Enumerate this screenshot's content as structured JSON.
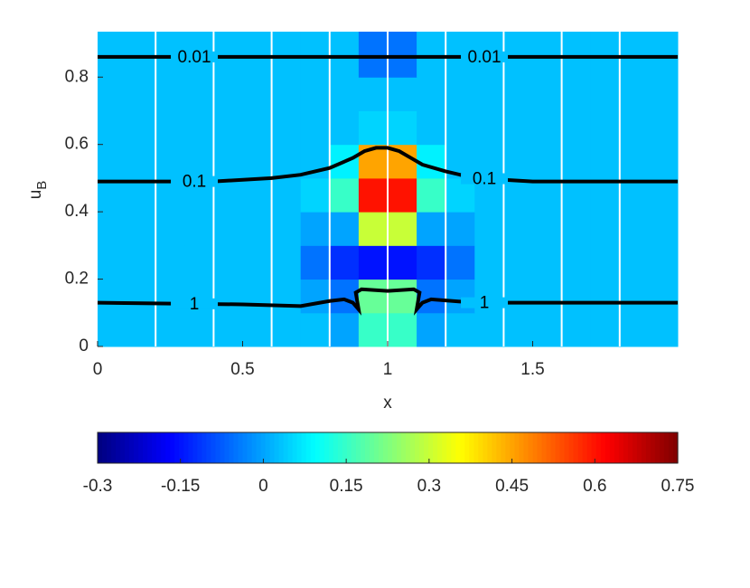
{
  "chart_data": {
    "type": "heatmap",
    "xlabel": "x",
    "ylabel": {
      "base": "u",
      "sub": "B"
    },
    "xlim": [
      0,
      2
    ],
    "ylim": [
      0,
      0.935
    ],
    "xticks": [
      0,
      0.5,
      1,
      1.5
    ],
    "yticks": [
      0,
      0.2,
      0.4,
      0.6,
      0.8
    ],
    "x_edges": [
      0,
      0.1,
      0.2,
      0.3,
      0.4,
      0.5,
      0.6,
      0.7,
      0.8,
      0.9,
      1.0,
      1.1,
      1.2,
      1.3,
      1.4,
      1.5,
      1.6,
      1.7,
      1.8,
      1.9,
      2.0
    ],
    "y_edges": [
      0,
      0.1,
      0.2,
      0.3,
      0.4,
      0.5,
      0.6,
      0.7,
      0.8,
      0.935
    ],
    "z": [
      [
        0.03,
        0.03,
        0.03,
        0.03,
        0.03,
        0.03,
        0.03,
        0.03,
        0.0,
        0.15,
        0.15,
        0.0,
        0.03,
        0.03,
        0.03,
        0.03,
        0.03,
        0.03,
        0.03,
        0.03
      ],
      [
        0.03,
        0.03,
        0.03,
        0.03,
        0.03,
        0.03,
        0.03,
        0.0,
        -0.05,
        0.2,
        0.2,
        -0.05,
        0.0,
        0.03,
        0.03,
        0.03,
        0.03,
        0.03,
        0.03,
        0.03
      ],
      [
        0.03,
        0.03,
        0.03,
        0.03,
        0.03,
        0.03,
        0.03,
        -0.05,
        -0.12,
        -0.15,
        -0.15,
        -0.12,
        -0.05,
        0.03,
        0.03,
        0.03,
        0.03,
        0.03,
        0.03,
        0.03
      ],
      [
        0.03,
        0.03,
        0.03,
        0.03,
        0.03,
        0.03,
        0.03,
        0.0,
        0.0,
        0.3,
        0.3,
        0.0,
        0.0,
        0.03,
        0.03,
        0.03,
        0.03,
        0.03,
        0.03,
        0.03
      ],
      [
        0.03,
        0.03,
        0.03,
        0.03,
        0.03,
        0.03,
        0.03,
        0.05,
        0.15,
        0.6,
        0.6,
        0.15,
        0.05,
        0.03,
        0.03,
        0.03,
        0.03,
        0.03,
        0.03,
        0.03
      ],
      [
        0.03,
        0.03,
        0.03,
        0.03,
        0.03,
        0.03,
        0.03,
        0.03,
        0.08,
        0.45,
        0.45,
        0.08,
        0.03,
        0.03,
        0.03,
        0.03,
        0.03,
        0.03,
        0.03,
        0.03
      ],
      [
        0.03,
        0.03,
        0.03,
        0.03,
        0.03,
        0.03,
        0.03,
        0.03,
        0.03,
        0.05,
        0.05,
        0.03,
        0.03,
        0.03,
        0.03,
        0.03,
        0.03,
        0.03,
        0.03,
        0.03
      ],
      [
        0.03,
        0.03,
        0.03,
        0.03,
        0.03,
        0.03,
        0.03,
        0.03,
        0.03,
        0.03,
        0.03,
        0.03,
        0.03,
        0.03,
        0.03,
        0.03,
        0.03,
        0.03,
        0.03,
        0.03
      ],
      [
        0.03,
        0.03,
        0.03,
        0.03,
        0.03,
        0.03,
        0.03,
        0.03,
        0.03,
        -0.05,
        -0.05,
        0.03,
        0.03,
        0.03,
        0.03,
        0.03,
        0.03,
        0.03,
        0.03,
        0.03
      ]
    ],
    "colormap": "jet",
    "clim": [
      -0.3,
      0.75
    ],
    "cticks": [
      -0.3,
      -0.15,
      0,
      0.15,
      0.3,
      0.45,
      0.6,
      0.75
    ],
    "contours": [
      {
        "level": 0.01,
        "x": [
          0,
          2
        ],
        "y": [
          0.86,
          0.86
        ]
      },
      {
        "level": 0.1,
        "x": [
          0,
          0.4,
          0.6,
          0.7,
          0.8,
          0.88,
          0.92,
          0.96,
          1.0,
          1.04,
          1.08,
          1.12,
          1.2,
          1.3,
          1.5,
          2
        ],
        "y": [
          0.49,
          0.49,
          0.5,
          0.51,
          0.53,
          0.56,
          0.58,
          0.59,
          0.59,
          0.58,
          0.56,
          0.54,
          0.52,
          0.5,
          0.49,
          0.49
        ]
      },
      {
        "level": 1,
        "x": [
          0,
          0.5,
          0.7,
          0.8,
          0.85,
          0.88,
          0.9,
          0.89,
          0.91,
          1.0,
          1.09,
          1.11,
          1.1,
          1.12,
          1.15,
          1.3,
          2
        ],
        "y": [
          0.13,
          0.125,
          0.12,
          0.135,
          0.14,
          0.13,
          0.11,
          0.16,
          0.17,
          0.165,
          0.17,
          0.16,
          0.11,
          0.13,
          0.14,
          0.13,
          0.13
        ]
      }
    ]
  }
}
